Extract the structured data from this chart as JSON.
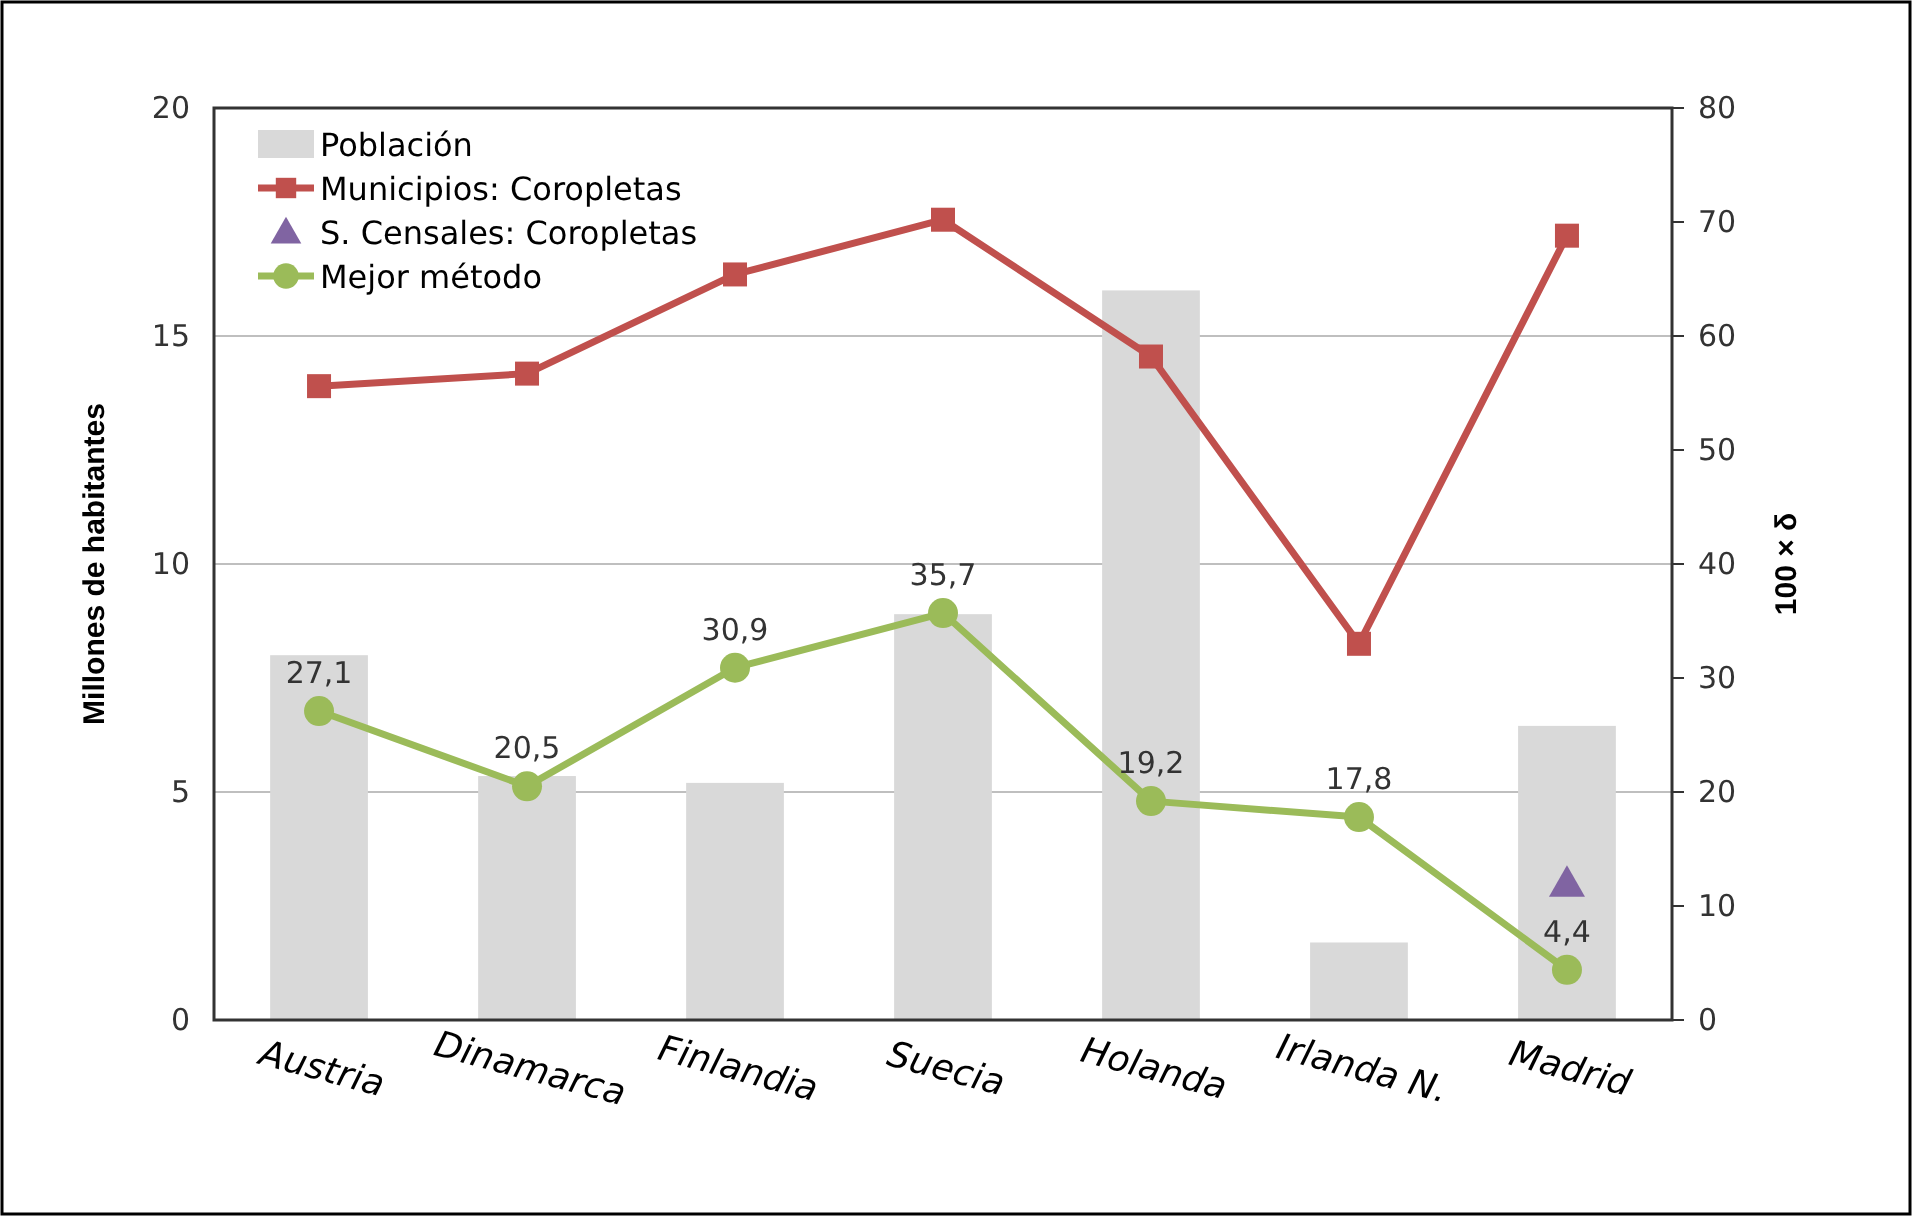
{
  "chart_data": {
    "type": "bar",
    "ylabel": "Millones de habitantes",
    "y2label": "100 × δ",
    "categories": [
      "Austria",
      "Dinamarca",
      "Finlandia",
      "Suecia",
      "Holanda",
      "Irlanda N.",
      "Madrid"
    ],
    "series": [
      {
        "name": "Población",
        "color": "#d9d9d9",
        "values": [
          8.0,
          5.35,
          5.2,
          8.9,
          16.0,
          1.7,
          6.45
        ]
      },
      {
        "name": "Municipios: Coropletas",
        "type": "line",
        "axis": "y2",
        "color": "#c0504d",
        "marker": "square",
        "values": [
          55.6,
          56.7,
          65.4,
          70.2,
          58.2,
          33.0,
          68.8
        ]
      },
      {
        "name": "S. Censales: Coropletas",
        "type": "scatter",
        "axis": "y2",
        "color": "#8064a2",
        "marker": "triangle",
        "values": [
          null,
          null,
          null,
          null,
          null,
          null,
          12
        ]
      },
      {
        "name": "Mejor método",
        "type": "line",
        "axis": "y2",
        "color": "#9bbb59",
        "marker": "circle",
        "values": [
          27.1,
          20.5,
          30.9,
          35.7,
          19.2,
          17.8,
          4.4
        ],
        "value_labels": [
          "27,1",
          "20,5",
          "30,9",
          "35,7",
          "19,2",
          "17,8",
          "4,4"
        ]
      }
    ],
    "ylim": [
      0,
      20
    ],
    "yticks": [
      0,
      5,
      10,
      15,
      20
    ],
    "y2lim": [
      0,
      80
    ],
    "y2ticks": [
      0,
      10,
      20,
      30,
      40,
      50,
      60,
      70,
      80
    ],
    "grid": "y",
    "legend": "top left"
  }
}
